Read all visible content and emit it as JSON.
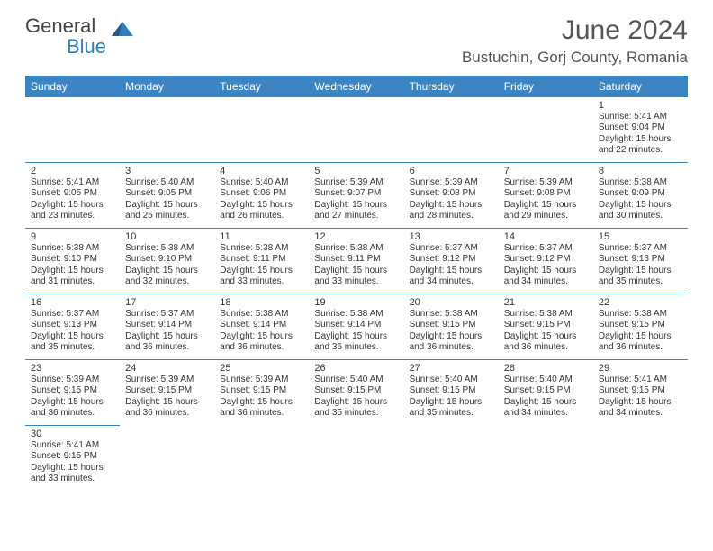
{
  "brand": {
    "name_a": "General",
    "name_b": "Blue",
    "text_color": "#444444",
    "accent_color": "#2e7ebf"
  },
  "title": "June 2024",
  "location": "Bustuchin, Gorj County, Romania",
  "header_bg": "#3b85c5",
  "header_fg": "#ffffff",
  "grid_line_color": "#3b85c5",
  "text_color": "#333333",
  "background_color": "#ffffff",
  "font_family": "Arial, Helvetica, sans-serif",
  "title_fontsize_pt": 22,
  "location_fontsize_pt": 13,
  "header_fontsize_pt": 9,
  "cell_fontsize_pt": 7.5,
  "weekdays": [
    "Sunday",
    "Monday",
    "Tuesday",
    "Wednesday",
    "Thursday",
    "Friday",
    "Saturday"
  ],
  "weeks": [
    [
      null,
      null,
      null,
      null,
      null,
      null,
      {
        "day": "1",
        "sunrise": "Sunrise: 5:41 AM",
        "sunset": "Sunset: 9:04 PM",
        "daylight1": "Daylight: 15 hours",
        "daylight2": "and 22 minutes."
      }
    ],
    [
      {
        "day": "2",
        "sunrise": "Sunrise: 5:41 AM",
        "sunset": "Sunset: 9:05 PM",
        "daylight1": "Daylight: 15 hours",
        "daylight2": "and 23 minutes."
      },
      {
        "day": "3",
        "sunrise": "Sunrise: 5:40 AM",
        "sunset": "Sunset: 9:05 PM",
        "daylight1": "Daylight: 15 hours",
        "daylight2": "and 25 minutes."
      },
      {
        "day": "4",
        "sunrise": "Sunrise: 5:40 AM",
        "sunset": "Sunset: 9:06 PM",
        "daylight1": "Daylight: 15 hours",
        "daylight2": "and 26 minutes."
      },
      {
        "day": "5",
        "sunrise": "Sunrise: 5:39 AM",
        "sunset": "Sunset: 9:07 PM",
        "daylight1": "Daylight: 15 hours",
        "daylight2": "and 27 minutes."
      },
      {
        "day": "6",
        "sunrise": "Sunrise: 5:39 AM",
        "sunset": "Sunset: 9:08 PM",
        "daylight1": "Daylight: 15 hours",
        "daylight2": "and 28 minutes."
      },
      {
        "day": "7",
        "sunrise": "Sunrise: 5:39 AM",
        "sunset": "Sunset: 9:08 PM",
        "daylight1": "Daylight: 15 hours",
        "daylight2": "and 29 minutes."
      },
      {
        "day": "8",
        "sunrise": "Sunrise: 5:38 AM",
        "sunset": "Sunset: 9:09 PM",
        "daylight1": "Daylight: 15 hours",
        "daylight2": "and 30 minutes."
      }
    ],
    [
      {
        "day": "9",
        "sunrise": "Sunrise: 5:38 AM",
        "sunset": "Sunset: 9:10 PM",
        "daylight1": "Daylight: 15 hours",
        "daylight2": "and 31 minutes."
      },
      {
        "day": "10",
        "sunrise": "Sunrise: 5:38 AM",
        "sunset": "Sunset: 9:10 PM",
        "daylight1": "Daylight: 15 hours",
        "daylight2": "and 32 minutes."
      },
      {
        "day": "11",
        "sunrise": "Sunrise: 5:38 AM",
        "sunset": "Sunset: 9:11 PM",
        "daylight1": "Daylight: 15 hours",
        "daylight2": "and 33 minutes."
      },
      {
        "day": "12",
        "sunrise": "Sunrise: 5:38 AM",
        "sunset": "Sunset: 9:11 PM",
        "daylight1": "Daylight: 15 hours",
        "daylight2": "and 33 minutes."
      },
      {
        "day": "13",
        "sunrise": "Sunrise: 5:37 AM",
        "sunset": "Sunset: 9:12 PM",
        "daylight1": "Daylight: 15 hours",
        "daylight2": "and 34 minutes."
      },
      {
        "day": "14",
        "sunrise": "Sunrise: 5:37 AM",
        "sunset": "Sunset: 9:12 PM",
        "daylight1": "Daylight: 15 hours",
        "daylight2": "and 34 minutes."
      },
      {
        "day": "15",
        "sunrise": "Sunrise: 5:37 AM",
        "sunset": "Sunset: 9:13 PM",
        "daylight1": "Daylight: 15 hours",
        "daylight2": "and 35 minutes."
      }
    ],
    [
      {
        "day": "16",
        "sunrise": "Sunrise: 5:37 AM",
        "sunset": "Sunset: 9:13 PM",
        "daylight1": "Daylight: 15 hours",
        "daylight2": "and 35 minutes."
      },
      {
        "day": "17",
        "sunrise": "Sunrise: 5:37 AM",
        "sunset": "Sunset: 9:14 PM",
        "daylight1": "Daylight: 15 hours",
        "daylight2": "and 36 minutes."
      },
      {
        "day": "18",
        "sunrise": "Sunrise: 5:38 AM",
        "sunset": "Sunset: 9:14 PM",
        "daylight1": "Daylight: 15 hours",
        "daylight2": "and 36 minutes."
      },
      {
        "day": "19",
        "sunrise": "Sunrise: 5:38 AM",
        "sunset": "Sunset: 9:14 PM",
        "daylight1": "Daylight: 15 hours",
        "daylight2": "and 36 minutes."
      },
      {
        "day": "20",
        "sunrise": "Sunrise: 5:38 AM",
        "sunset": "Sunset: 9:15 PM",
        "daylight1": "Daylight: 15 hours",
        "daylight2": "and 36 minutes."
      },
      {
        "day": "21",
        "sunrise": "Sunrise: 5:38 AM",
        "sunset": "Sunset: 9:15 PM",
        "daylight1": "Daylight: 15 hours",
        "daylight2": "and 36 minutes."
      },
      {
        "day": "22",
        "sunrise": "Sunrise: 5:38 AM",
        "sunset": "Sunset: 9:15 PM",
        "daylight1": "Daylight: 15 hours",
        "daylight2": "and 36 minutes."
      }
    ],
    [
      {
        "day": "23",
        "sunrise": "Sunrise: 5:39 AM",
        "sunset": "Sunset: 9:15 PM",
        "daylight1": "Daylight: 15 hours",
        "daylight2": "and 36 minutes."
      },
      {
        "day": "24",
        "sunrise": "Sunrise: 5:39 AM",
        "sunset": "Sunset: 9:15 PM",
        "daylight1": "Daylight: 15 hours",
        "daylight2": "and 36 minutes."
      },
      {
        "day": "25",
        "sunrise": "Sunrise: 5:39 AM",
        "sunset": "Sunset: 9:15 PM",
        "daylight1": "Daylight: 15 hours",
        "daylight2": "and 36 minutes."
      },
      {
        "day": "26",
        "sunrise": "Sunrise: 5:40 AM",
        "sunset": "Sunset: 9:15 PM",
        "daylight1": "Daylight: 15 hours",
        "daylight2": "and 35 minutes."
      },
      {
        "day": "27",
        "sunrise": "Sunrise: 5:40 AM",
        "sunset": "Sunset: 9:15 PM",
        "daylight1": "Daylight: 15 hours",
        "daylight2": "and 35 minutes."
      },
      {
        "day": "28",
        "sunrise": "Sunrise: 5:40 AM",
        "sunset": "Sunset: 9:15 PM",
        "daylight1": "Daylight: 15 hours",
        "daylight2": "and 34 minutes."
      },
      {
        "day": "29",
        "sunrise": "Sunrise: 5:41 AM",
        "sunset": "Sunset: 9:15 PM",
        "daylight1": "Daylight: 15 hours",
        "daylight2": "and 34 minutes."
      }
    ],
    [
      {
        "day": "30",
        "sunrise": "Sunrise: 5:41 AM",
        "sunset": "Sunset: 9:15 PM",
        "daylight1": "Daylight: 15 hours",
        "daylight2": "and 33 minutes."
      },
      null,
      null,
      null,
      null,
      null,
      null
    ]
  ]
}
